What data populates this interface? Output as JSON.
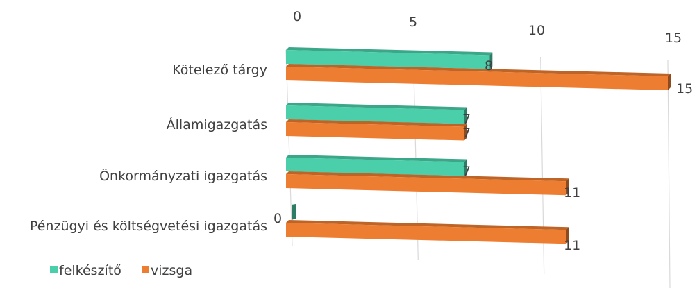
{
  "chart_data": {
    "type": "bar",
    "orientation": "horizontal",
    "three_d": true,
    "categories": [
      "Kötelező tárgy",
      "Államigazgatás",
      "Önkormányzati igazgatás",
      "Pénzügyi és költségvetési igazgatás"
    ],
    "series": [
      {
        "name": "felkészítő",
        "color": "#4bcfaa",
        "values": [
          8,
          7,
          7,
          0
        ]
      },
      {
        "name": "vizsga",
        "color": "#ed7d31",
        "values": [
          15,
          7,
          11,
          11
        ]
      }
    ],
    "xlim": [
      0,
      15
    ],
    "ticks": [
      "0",
      "5",
      "10",
      "15"
    ],
    "tick_values": [
      0,
      5,
      10,
      15
    ],
    "grid": true,
    "data_labels": true,
    "legend_position": "bottom-left"
  }
}
